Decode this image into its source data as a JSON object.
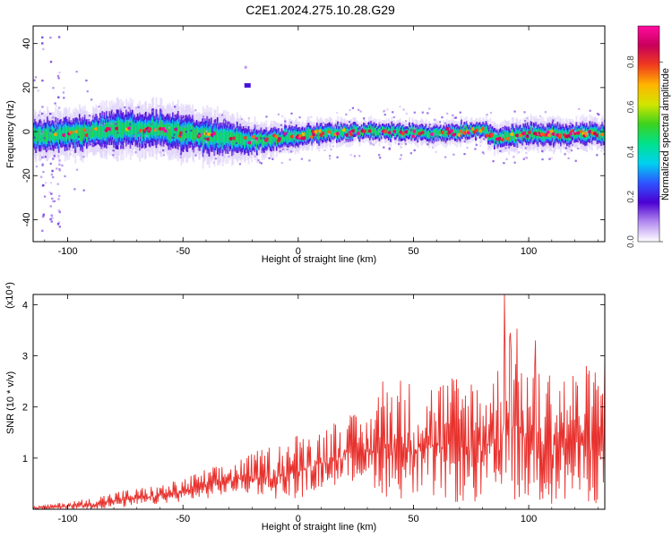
{
  "title": "C2E1.2024.275.10.28.G29",
  "colors": {
    "snr_line": "#e8322e",
    "spectrogram_cmap": [
      "#ffffff",
      "#b48cf0",
      "#4b00d2",
      "#2d55ff",
      "#00d2f0",
      "#00e18c",
      "#3cd21e",
      "#d2e600",
      "#ffb400",
      "#f03c1e",
      "#c8005a",
      "#ff0aa0"
    ]
  },
  "chart_data": [
    {
      "type": "heatmap",
      "xlabel": "Height of straight line (km)",
      "ylabel": "Frequency (Hz)",
      "xlim": [
        -115,
        133
      ],
      "ylim": [
        -50,
        48
      ],
      "x_ticks": [
        -100,
        -50,
        0,
        50,
        100
      ],
      "y_ticks": [
        -40,
        -20,
        0,
        20,
        40
      ],
      "colorbar": {
        "label": "Normalized spectral amplitude",
        "range": [
          0.0,
          0.96
        ],
        "ticks": [
          "0.0",
          "0.2",
          "0.4",
          "0.6",
          "0.8"
        ]
      },
      "ridge": {
        "x_km": [
          -115,
          -100,
          -80,
          -60,
          -40,
          -20,
          -10,
          0,
          20,
          40,
          60,
          80,
          85,
          100,
          120,
          133
        ],
        "freq_hz": [
          -2,
          -1,
          1,
          1,
          -2,
          -4,
          -3,
          -2,
          0,
          0,
          -1,
          1,
          -3,
          -1,
          -1,
          -1
        ],
        "half_width_hz": [
          6,
          6,
          7,
          7,
          7,
          5,
          4,
          4,
          3,
          3,
          3,
          3,
          4,
          4,
          4,
          4
        ]
      },
      "annotations": [
        {
          "x_km": -22,
          "freq_hz": 21,
          "label": ""
        }
      ]
    },
    {
      "type": "line",
      "xlabel": "Height of straight line (km)",
      "ylabel": "SNR (10 * v/v)",
      "scale_label": "(x10⁴)",
      "xlim": [
        -115,
        133
      ],
      "ylim": [
        0,
        4.2
      ],
      "x_ticks": [
        -100,
        -50,
        0,
        50,
        100
      ],
      "y_ticks": [
        1,
        2,
        3,
        4
      ],
      "envelope": {
        "x": [
          -115,
          -100,
          -90,
          -80,
          -70,
          -60,
          -50,
          -40,
          -30,
          -20,
          -10,
          0,
          10,
          20,
          30,
          35,
          40,
          50,
          60,
          70,
          80,
          88,
          90,
          100,
          110,
          120,
          133
        ],
        "max": [
          0.05,
          0.15,
          0.22,
          0.35,
          0.42,
          0.48,
          0.6,
          0.8,
          0.9,
          1.1,
          1.3,
          1.5,
          1.6,
          1.9,
          1.8,
          2.6,
          2.7,
          2.5,
          2.6,
          2.7,
          2.7,
          2.9,
          4.2,
          2.9,
          2.8,
          2.8,
          2.9
        ],
        "min": [
          0.0,
          0.0,
          0.0,
          0.02,
          0.05,
          0.1,
          0.15,
          0.2,
          0.3,
          0.3,
          0.2,
          0.2,
          0.4,
          0.5,
          0.6,
          0.3,
          0.2,
          0.2,
          0.2,
          0.1,
          0.1,
          0.1,
          0.2,
          0.1,
          0.1,
          0.1,
          0.1
        ]
      },
      "peaks": [
        {
          "x": 89.5,
          "y": 4.2
        },
        {
          "x": 92,
          "y": 3.45
        },
        {
          "x": 103,
          "y": 3.3
        },
        {
          "x": 133,
          "y": 2.95
        }
      ]
    }
  ]
}
